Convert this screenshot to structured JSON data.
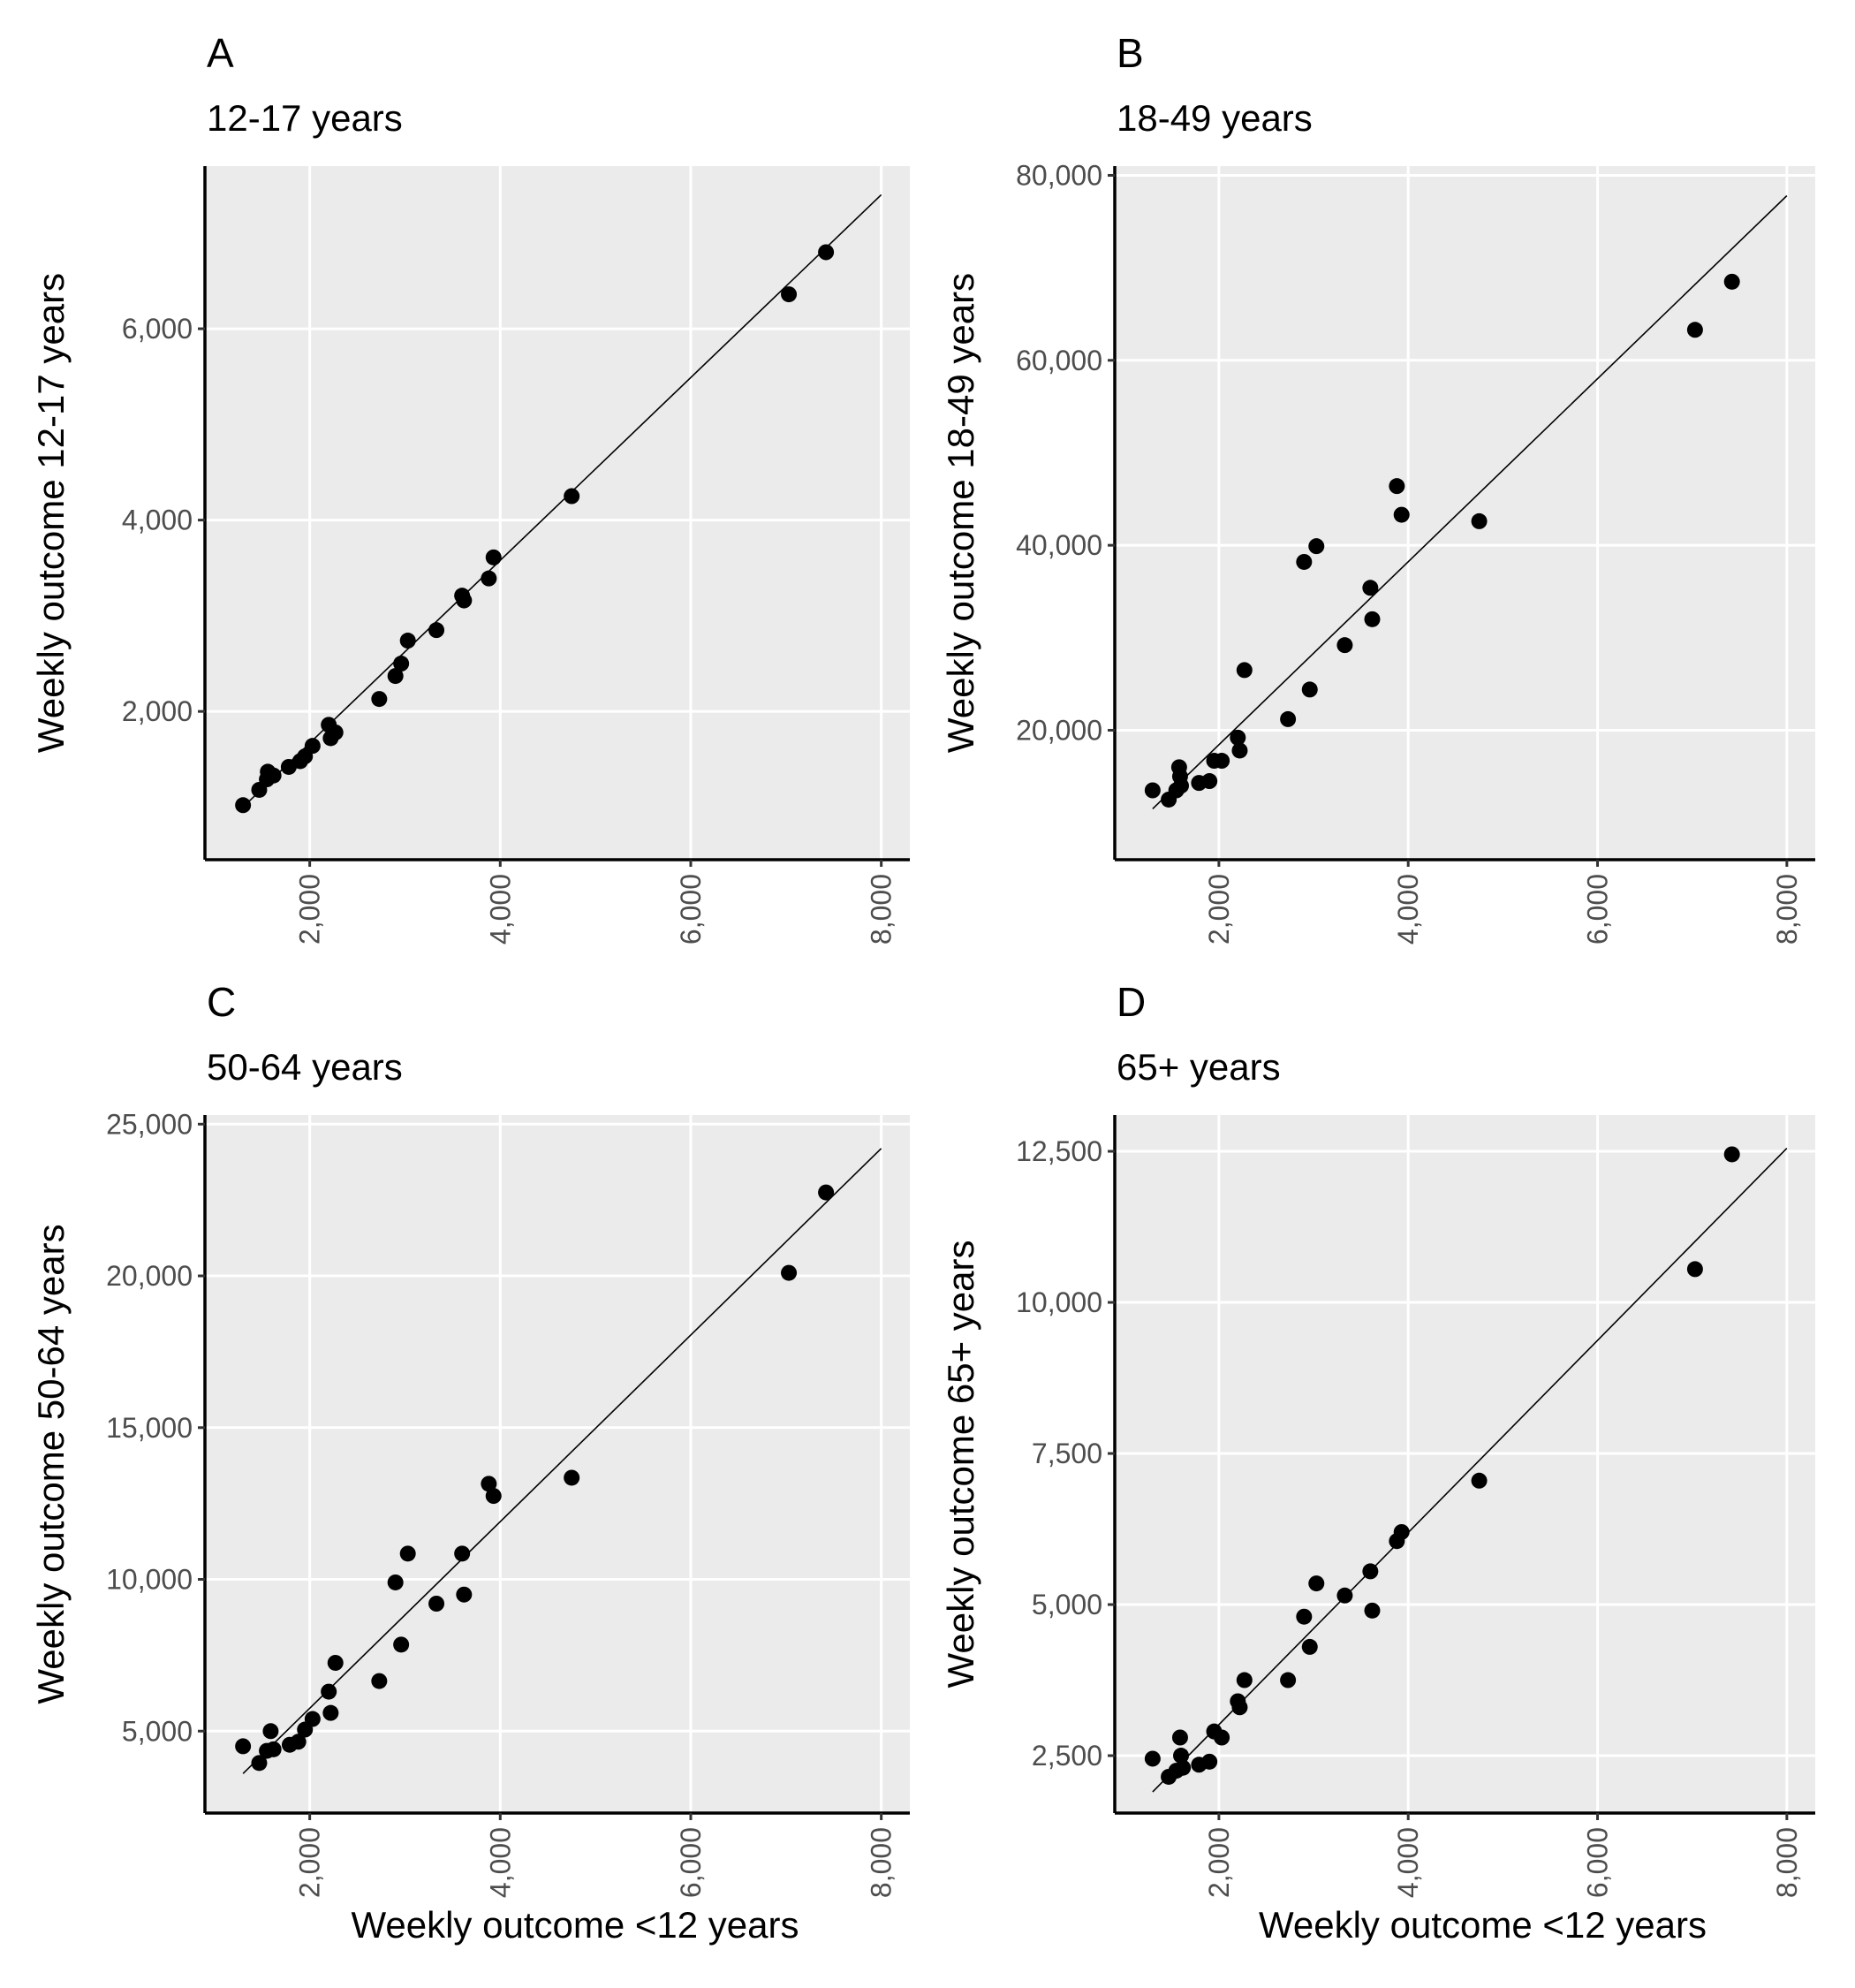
{
  "figure": {
    "x_axis_title": "Weekly outcome <12 years"
  },
  "chart_data": [
    {
      "panel": "A",
      "type": "scatter",
      "title": "12-17 years",
      "xlabel": "",
      "ylabel": "Weekly outcome 12-17 years",
      "xlim": [
        900,
        8300
      ],
      "ylim": [
        450,
        7700
      ],
      "xticks": [
        2000,
        4000,
        6000,
        8000
      ],
      "xtick_labels": [
        "2,000",
        "4,000",
        "6,000",
        "8,000"
      ],
      "yticks": [
        2000,
        4000,
        6000
      ],
      "ytick_labels": [
        "2,000",
        "4,000",
        "6,000"
      ],
      "grid": true,
      "fit_line": {
        "x": [
          1300,
          8000
        ],
        "y": [
          1000,
          7400
        ]
      },
      "points": [
        {
          "x": 1300,
          "y": 1020
        },
        {
          "x": 1470,
          "y": 1180
        },
        {
          "x": 1550,
          "y": 1290
        },
        {
          "x": 1560,
          "y": 1370
        },
        {
          "x": 1620,
          "y": 1330
        },
        {
          "x": 1780,
          "y": 1420
        },
        {
          "x": 1900,
          "y": 1480
        },
        {
          "x": 1950,
          "y": 1530
        },
        {
          "x": 2030,
          "y": 1640
        },
        {
          "x": 2200,
          "y": 1860
        },
        {
          "x": 2220,
          "y": 1720
        },
        {
          "x": 2270,
          "y": 1780
        },
        {
          "x": 2730,
          "y": 2130
        },
        {
          "x": 2900,
          "y": 2370
        },
        {
          "x": 2960,
          "y": 2500
        },
        {
          "x": 3030,
          "y": 2740
        },
        {
          "x": 3330,
          "y": 2850
        },
        {
          "x": 3600,
          "y": 3210
        },
        {
          "x": 3620,
          "y": 3160
        },
        {
          "x": 3880,
          "y": 3390
        },
        {
          "x": 3930,
          "y": 3610
        },
        {
          "x": 4750,
          "y": 4250
        },
        {
          "x": 7030,
          "y": 6360
        },
        {
          "x": 7420,
          "y": 6800
        }
      ]
    },
    {
      "panel": "B",
      "type": "scatter",
      "title": "18-49 years",
      "xlabel": "",
      "ylabel": "Weekly outcome 18-49 years",
      "xlim": [
        900,
        8300
      ],
      "ylim": [
        6000,
        81000
      ],
      "xticks": [
        2000,
        4000,
        6000,
        8000
      ],
      "xtick_labels": [
        "2,000",
        "4,000",
        "6,000",
        "8,000"
      ],
      "yticks": [
        20000,
        40000,
        60000,
        80000
      ],
      "ytick_labels": [
        "20,000",
        "40,000",
        "60,000",
        "80,000"
      ],
      "grid": true,
      "fit_line": {
        "x": [
          1300,
          8000
        ],
        "y": [
          11500,
          77800
        ]
      },
      "points": [
        {
          "x": 1300,
          "y": 13500
        },
        {
          "x": 1470,
          "y": 12500
        },
        {
          "x": 1550,
          "y": 13500
        },
        {
          "x": 1580,
          "y": 16000
        },
        {
          "x": 1590,
          "y": 15000
        },
        {
          "x": 1600,
          "y": 14000
        },
        {
          "x": 1790,
          "y": 14300
        },
        {
          "x": 1900,
          "y": 14500
        },
        {
          "x": 1950,
          "y": 16700
        },
        {
          "x": 2030,
          "y": 16700
        },
        {
          "x": 2200,
          "y": 19200
        },
        {
          "x": 2220,
          "y": 17800
        },
        {
          "x": 2270,
          "y": 26500
        },
        {
          "x": 2730,
          "y": 21200
        },
        {
          "x": 2900,
          "y": 38200
        },
        {
          "x": 2960,
          "y": 24400
        },
        {
          "x": 3030,
          "y": 39900
        },
        {
          "x": 3330,
          "y": 29200
        },
        {
          "x": 3600,
          "y": 35400
        },
        {
          "x": 3620,
          "y": 32000
        },
        {
          "x": 3880,
          "y": 46400
        },
        {
          "x": 3930,
          "y": 43300
        },
        {
          "x": 4750,
          "y": 42600
        },
        {
          "x": 7030,
          "y": 63300
        },
        {
          "x": 7420,
          "y": 68500
        }
      ]
    },
    {
      "panel": "C",
      "type": "scatter",
      "title": "50-64 years",
      "xlabel": "Weekly outcome <12 years",
      "ylabel": "Weekly outcome 50-64 years",
      "xlim": [
        900,
        8300
      ],
      "ylim": [
        2300,
        25300
      ],
      "xticks": [
        2000,
        4000,
        6000,
        8000
      ],
      "xtick_labels": [
        "2,000",
        "4,000",
        "6,000",
        "8,000"
      ],
      "yticks": [
        5000,
        10000,
        15000,
        20000,
        25000
      ],
      "ytick_labels": [
        "5,000",
        "10,000",
        "15,000",
        "20,000",
        "25,000"
      ],
      "grid": true,
      "fit_line": {
        "x": [
          1300,
          8000
        ],
        "y": [
          3600,
          24200
        ]
      },
      "points": [
        {
          "x": 1300,
          "y": 4500
        },
        {
          "x": 1470,
          "y": 3950
        },
        {
          "x": 1550,
          "y": 4350
        },
        {
          "x": 1590,
          "y": 5000
        },
        {
          "x": 1620,
          "y": 4400
        },
        {
          "x": 1790,
          "y": 4550
        },
        {
          "x": 1880,
          "y": 4650
        },
        {
          "x": 1950,
          "y": 5050
        },
        {
          "x": 2030,
          "y": 5400
        },
        {
          "x": 2200,
          "y": 6300
        },
        {
          "x": 2220,
          "y": 5600
        },
        {
          "x": 2270,
          "y": 7250
        },
        {
          "x": 2730,
          "y": 6650
        },
        {
          "x": 2900,
          "y": 9900
        },
        {
          "x": 2960,
          "y": 7850
        },
        {
          "x": 3030,
          "y": 10850
        },
        {
          "x": 3330,
          "y": 9200
        },
        {
          "x": 3600,
          "y": 10850
        },
        {
          "x": 3620,
          "y": 9500
        },
        {
          "x": 3880,
          "y": 13150
        },
        {
          "x": 3930,
          "y": 12750
        },
        {
          "x": 4750,
          "y": 13350
        },
        {
          "x": 7030,
          "y": 20100
        },
        {
          "x": 7420,
          "y": 22750
        }
      ]
    },
    {
      "panel": "D",
      "type": "scatter",
      "title": "65+ years",
      "xlabel": "Weekly outcome <12 years",
      "ylabel": "Weekly outcome 65+ years",
      "xlim": [
        900,
        8300
      ],
      "ylim": [
        1550,
        13100
      ],
      "xticks": [
        2000,
        4000,
        6000,
        8000
      ],
      "xtick_labels": [
        "2,000",
        "4,000",
        "6,000",
        "8,000"
      ],
      "yticks": [
        2500,
        5000,
        7500,
        10000,
        12500
      ],
      "ytick_labels": [
        "2,500",
        "5,000",
        "7,500",
        "10,000",
        "12,500"
      ],
      "grid": true,
      "fit_line": {
        "x": [
          1300,
          8000
        ],
        "y": [
          1900,
          12550
        ]
      },
      "points": [
        {
          "x": 1300,
          "y": 2450
        },
        {
          "x": 1470,
          "y": 2150
        },
        {
          "x": 1550,
          "y": 2250
        },
        {
          "x": 1590,
          "y": 2800
        },
        {
          "x": 1600,
          "y": 2500
        },
        {
          "x": 1620,
          "y": 2300
        },
        {
          "x": 1790,
          "y": 2350
        },
        {
          "x": 1900,
          "y": 2400
        },
        {
          "x": 1950,
          "y": 2900
        },
        {
          "x": 2030,
          "y": 2800
        },
        {
          "x": 2200,
          "y": 3400
        },
        {
          "x": 2220,
          "y": 3300
        },
        {
          "x": 2270,
          "y": 3750
        },
        {
          "x": 2730,
          "y": 3750
        },
        {
          "x": 2900,
          "y": 4800
        },
        {
          "x": 2960,
          "y": 4300
        },
        {
          "x": 3030,
          "y": 5350
        },
        {
          "x": 3330,
          "y": 5150
        },
        {
          "x": 3600,
          "y": 5550
        },
        {
          "x": 3620,
          "y": 4900
        },
        {
          "x": 3880,
          "y": 6050
        },
        {
          "x": 3930,
          "y": 6200
        },
        {
          "x": 4750,
          "y": 7050
        },
        {
          "x": 7030,
          "y": 10550
        },
        {
          "x": 7420,
          "y": 12450
        }
      ]
    }
  ]
}
